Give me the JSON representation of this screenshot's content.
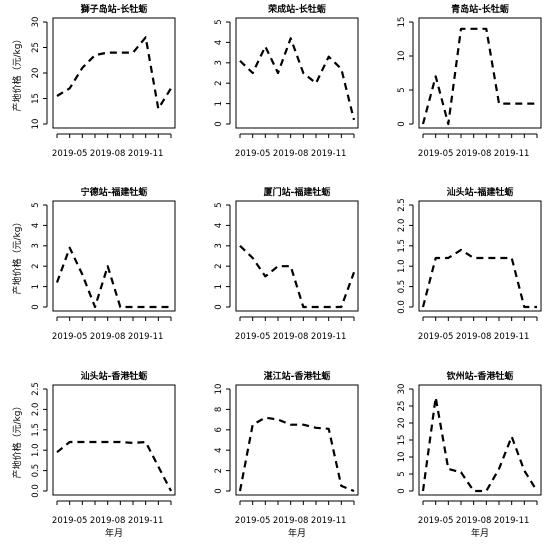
{
  "chart_data": [
    {
      "type": "line",
      "title": "獅子岛站-长牡蛎",
      "ylabel": "产地价格（元/kg）",
      "xlabel": "",
      "ylim": [
        10,
        30
      ],
      "yticks": [
        10,
        15,
        20,
        25,
        30
      ],
      "x_tick_labels": [
        "2019-05",
        "2019-08",
        "2019-11"
      ],
      "x": [
        "2019-04",
        "2019-05",
        "2019-06",
        "2019-07",
        "2019-08",
        "2019-09",
        "2019-10",
        "2019-11",
        "2019-12",
        "2020-01"
      ],
      "values": [
        15.5,
        17,
        21,
        23.5,
        24,
        24,
        24,
        27,
        13,
        17
      ]
    },
    {
      "type": "line",
      "title": "荣成站-长牡蛎",
      "ylabel": "",
      "xlabel": "",
      "ylim": [
        0,
        5
      ],
      "yticks": [
        0,
        1,
        2,
        3,
        4,
        5
      ],
      "x_tick_labels": [
        "2019-05",
        "2019-08",
        "2019-11"
      ],
      "x": [
        "2019-04",
        "2019-05",
        "2019-06",
        "2019-07",
        "2019-08",
        "2019-09",
        "2019-10",
        "2019-11",
        "2019-12",
        "2020-01"
      ],
      "values": [
        3.1,
        2.5,
        3.8,
        2.5,
        4.2,
        2.5,
        2.0,
        3.3,
        2.7,
        0.2
      ]
    },
    {
      "type": "line",
      "title": "青岛站-长牡蛎",
      "ylabel": "",
      "xlabel": "",
      "ylim": [
        0,
        15
      ],
      "yticks": [
        0,
        5,
        10,
        15
      ],
      "x_tick_labels": [
        "2019-05",
        "2019-08",
        "2019-11"
      ],
      "x": [
        "2019-04",
        "2019-05",
        "2019-06",
        "2019-07",
        "2019-08",
        "2019-09",
        "2019-10",
        "2019-11",
        "2019-12",
        "2020-01"
      ],
      "values": [
        0,
        7,
        0,
        14,
        14,
        14,
        3,
        3,
        3,
        3
      ]
    },
    {
      "type": "line",
      "title": "宁德站-福建牡蛎",
      "ylabel": "产地价格（元/kg）",
      "xlabel": "",
      "ylim": [
        0,
        5
      ],
      "yticks": [
        0,
        1,
        2,
        3,
        4,
        5
      ],
      "x_tick_labels": [
        "2019-05",
        "2019-08",
        "2019-11"
      ],
      "x": [
        "2019-04",
        "2019-05",
        "2019-06",
        "2019-07",
        "2019-08",
        "2019-09",
        "2019-10",
        "2019-11",
        "2019-12",
        "2020-01"
      ],
      "values": [
        1.2,
        2.9,
        1.6,
        0,
        2.0,
        0,
        0,
        0,
        0,
        0
      ]
    },
    {
      "type": "line",
      "title": "厦门站-福建牡蛎",
      "ylabel": "",
      "xlabel": "",
      "ylim": [
        0,
        5
      ],
      "yticks": [
        0,
        1,
        2,
        3,
        4,
        5
      ],
      "x_tick_labels": [
        "2019-05",
        "2019-08",
        "2019-11"
      ],
      "x": [
        "2019-04",
        "2019-05",
        "2019-06",
        "2019-07",
        "2019-08",
        "2019-09",
        "2019-10",
        "2019-11",
        "2019-12",
        "2020-01"
      ],
      "values": [
        3.0,
        2.4,
        1.5,
        2.0,
        2.0,
        0,
        0,
        0,
        0,
        1.7
      ]
    },
    {
      "type": "line",
      "title": "汕头站-福建牡蛎",
      "ylabel": "",
      "xlabel": "",
      "ylim": [
        0,
        2.5
      ],
      "yticks": [
        0.0,
        0.5,
        1.0,
        1.5,
        2.0,
        2.5
      ],
      "x_tick_labels": [
        "2019-05",
        "2019-08",
        "2019-11"
      ],
      "x": [
        "2019-04",
        "2019-05",
        "2019-06",
        "2019-07",
        "2019-08",
        "2019-09",
        "2019-10",
        "2019-11",
        "2019-12",
        "2020-01"
      ],
      "values": [
        0,
        1.2,
        1.2,
        1.4,
        1.2,
        1.2,
        1.2,
        1.2,
        0,
        0
      ]
    },
    {
      "type": "line",
      "title": "汕头站-香港牡蛎",
      "ylabel": "产地价格（元/kg）",
      "xlabel": "年月",
      "ylim": [
        0,
        2.5
      ],
      "yticks": [
        0.0,
        0.5,
        1.0,
        1.5,
        2.0,
        2.5
      ],
      "x_tick_labels": [
        "2019-05",
        "2019-08",
        "2019-11"
      ],
      "x": [
        "2019-04",
        "2019-05",
        "2019-06",
        "2019-07",
        "2019-08",
        "2019-09",
        "2019-10",
        "2019-11",
        "2019-12",
        "2020-01"
      ],
      "values": [
        0.95,
        1.2,
        1.2,
        1.2,
        1.2,
        1.2,
        1.18,
        1.2,
        0.6,
        0
      ]
    },
    {
      "type": "line",
      "title": "湛江站-香港牡蛎",
      "ylabel": "",
      "xlabel": "年月",
      "ylim": [
        0,
        10
      ],
      "yticks": [
        0,
        2,
        4,
        6,
        8,
        10
      ],
      "x_tick_labels": [
        "2019-05",
        "2019-08",
        "2019-11"
      ],
      "x": [
        "2019-04",
        "2019-05",
        "2019-06",
        "2019-07",
        "2019-08",
        "2019-09",
        "2019-10",
        "2019-11",
        "2019-12",
        "2020-01"
      ],
      "values": [
        0,
        6.5,
        7.2,
        7.0,
        6.5,
        6.5,
        6.2,
        6.1,
        0.5,
        0
      ]
    },
    {
      "type": "line",
      "title": "钦州站-香港牡蛎",
      "ylabel": "",
      "xlabel": "年月",
      "ylim": [
        0,
        30
      ],
      "yticks": [
        0,
        5,
        10,
        15,
        20,
        25,
        30
      ],
      "x_tick_labels": [
        "2019-05",
        "2019-08",
        "2019-11"
      ],
      "x": [
        "2019-04",
        "2019-05",
        "2019-06",
        "2019-07",
        "2019-08",
        "2019-09",
        "2019-10",
        "2019-11",
        "2019-12",
        "2020-01"
      ],
      "values": [
        0,
        27.5,
        6.5,
        5.5,
        0,
        0,
        6.5,
        16,
        6,
        0
      ]
    }
  ]
}
